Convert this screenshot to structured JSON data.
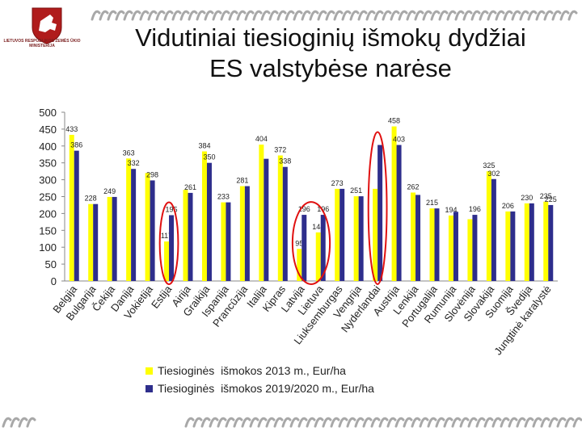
{
  "header": {
    "logo_text": "LIETUVOS RESPUBLIKOS ŽEMĖS ŪKIO MINISTERIJA",
    "title_line1": "Vidutiniai tiesioginių išmokų dydžiai",
    "title_line2": "ES valstybėse narėse"
  },
  "colors": {
    "series_2013": "#ffff00",
    "series_2019": "#2e2e8c",
    "highlight": "#e01010",
    "deco": "#a8a8a8"
  },
  "chart_data": {
    "type": "bar",
    "categories": [
      "Belgija",
      "Bulgarija",
      "Čekija",
      "Danija",
      "Vokietija",
      "Estija",
      "Airija",
      "Graikija",
      "Ispanija",
      "Prancūzija",
      "Italija",
      "Kipras",
      "Latvija",
      "Lietuva",
      "Liuksemburgas",
      "Vengrija",
      "Nyderlandai",
      "Austrija",
      "Lenkija",
      "Portugalija",
      "Rumunija",
      "Slovėnija",
      "Slovakija",
      "Suomija",
      "Švedija",
      "Jungtinė karalystė"
    ],
    "series": [
      {
        "name": "Tiesioginės  išmokos 2013 m., Eur/ha",
        "values": [
          433,
          228,
          249,
          363,
          320,
          117,
          270,
          384,
          233,
          281,
          404,
          372,
          95,
          144,
          273,
          251,
          273,
          458,
          262,
          215,
          194,
          183,
          325,
          206,
          230,
          235
        ],
        "labels": [
          "433",
          "228",
          "249",
          "363",
          "",
          "117",
          "",
          "384",
          "233",
          "281",
          "404",
          "372",
          "95",
          "144",
          "273",
          "251",
          "",
          "458",
          "262",
          "215",
          "194",
          "",
          "325",
          "206",
          "230",
          "235"
        ]
      },
      {
        "name": "Tiesioginės  išmokos 2019/2020 m., Eur/ha",
        "values": [
          386,
          228,
          249,
          332,
          298,
          195,
          261,
          350,
          233,
          281,
          362,
          338,
          196,
          196,
          273,
          251,
          403,
          403,
          255,
          215,
          205,
          196,
          302,
          206,
          230,
          225
        ],
        "labels": [
          "386",
          "",
          "",
          "332",
          "298",
          "195",
          "261",
          "350",
          "",
          "",
          "",
          "338",
          "196",
          "196",
          "",
          "",
          "",
          "403",
          "",
          "",
          "",
          "196",
          "302",
          "",
          "",
          "225"
        ]
      }
    ],
    "ylim": [
      0,
      500
    ],
    "yticks": [
      0,
      50,
      100,
      150,
      200,
      250,
      300,
      350,
      400,
      450,
      500
    ],
    "grid": false,
    "legend_position": "bottom",
    "highlighted_categories": [
      "Estija",
      "Latvija",
      "Lietuva",
      "Nyderlandai"
    ]
  }
}
